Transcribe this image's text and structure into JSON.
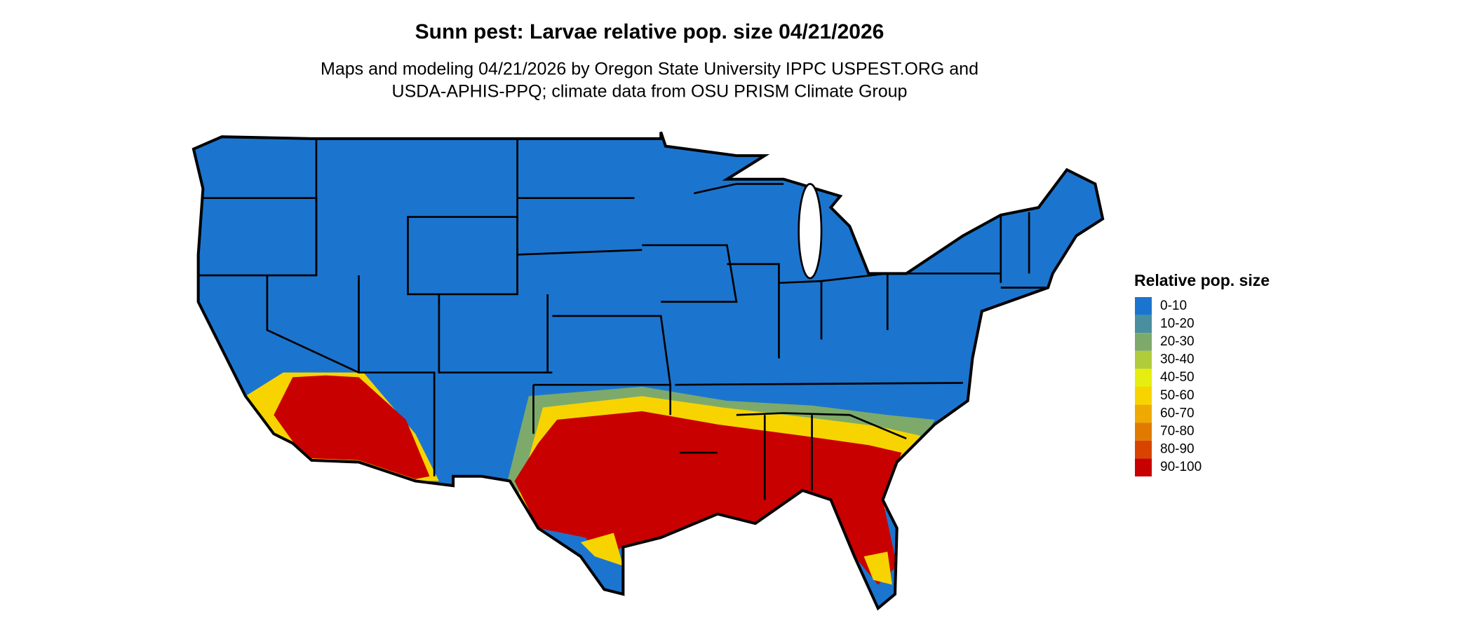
{
  "header": {
    "title": "Sunn pest: Larvae relative pop. size 04/21/2026",
    "subtitle": [
      "Maps and modeling 04/21/2026 by Oregon State University IPPC USPEST.ORG and",
      "USDA-APHIS-PPQ; climate data from OSU PRISM Climate Group"
    ]
  },
  "legend": {
    "title": "Relative pop. size",
    "items": [
      {
        "label": "0-10",
        "color": "#1b75cf"
      },
      {
        "label": "10-20",
        "color": "#4a8fa0"
      },
      {
        "label": "20-30",
        "color": "#7daa6a"
      },
      {
        "label": "30-40",
        "color": "#b0cc3a"
      },
      {
        "label": "40-50",
        "color": "#e6ed10"
      },
      {
        "label": "50-60",
        "color": "#f7d400"
      },
      {
        "label": "60-70",
        "color": "#eeaa00"
      },
      {
        "label": "70-80",
        "color": "#e27a00"
      },
      {
        "label": "80-90",
        "color": "#d84400"
      },
      {
        "label": "90-100",
        "color": "#c90000"
      }
    ]
  }
}
